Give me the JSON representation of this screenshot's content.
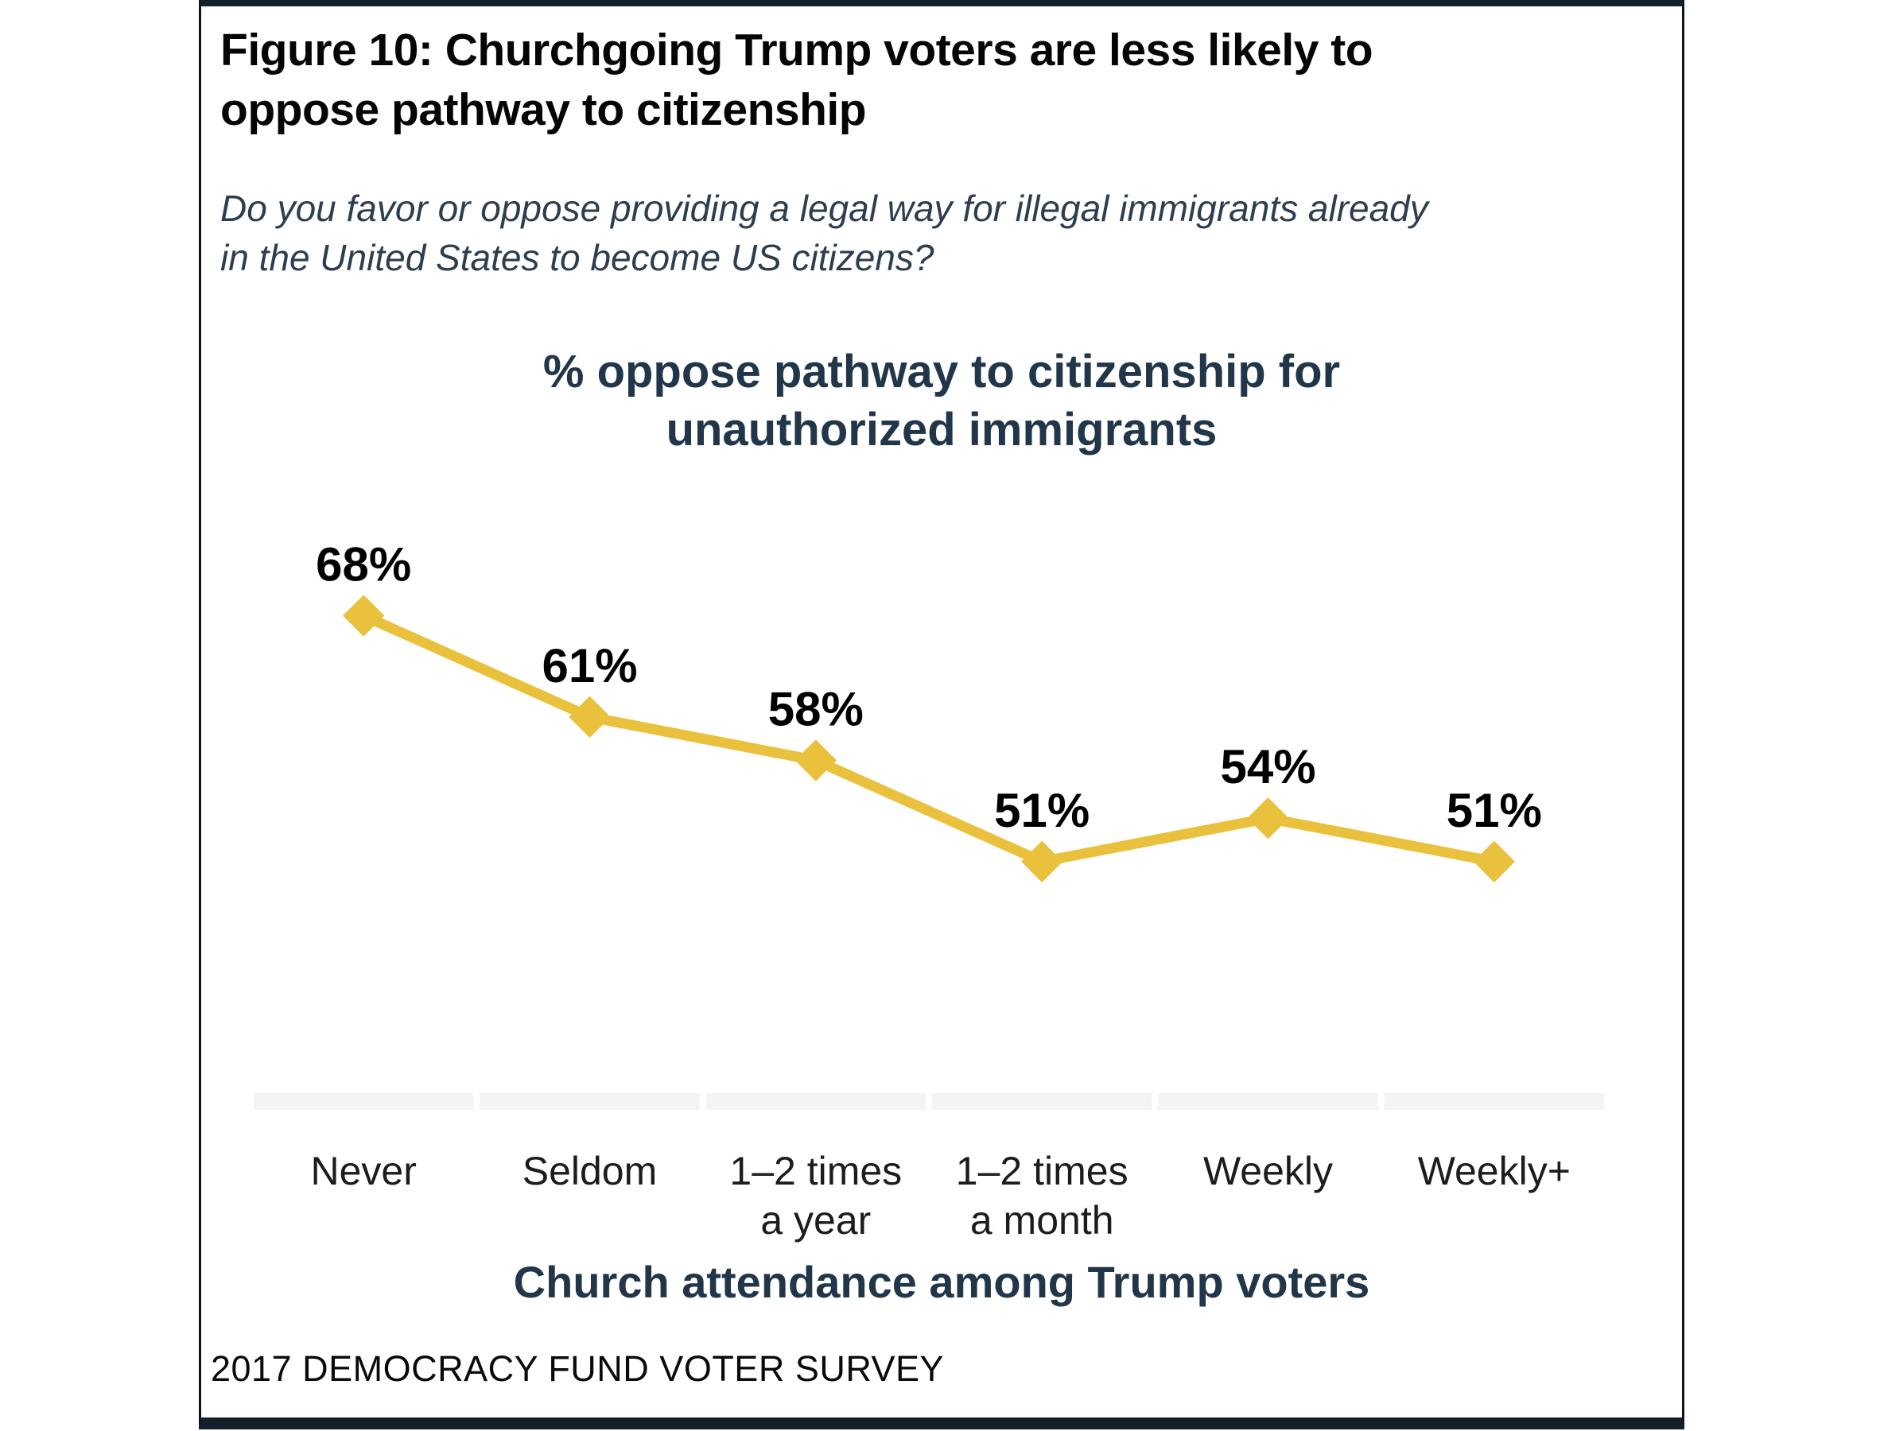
{
  "figure": {
    "title_lines": [
      "Figure 10: Churchgoing Trump voters are less likely to",
      "oppose pathway to citizenship"
    ],
    "subtitle_lines": [
      "Do you favor or oppose providing a legal way for illegal immigrants already",
      "in the United States to become US citizens?"
    ],
    "source": "2017 DEMOCRACY FUND VOTER SURVEY"
  },
  "chart_data": {
    "type": "line",
    "title_lines": [
      "% oppose pathway to citizenship for",
      "unauthorized immigrants"
    ],
    "xlabel": "Church attendance among Trump voters",
    "categories": [
      "Never",
      "Seldom",
      "1–2 times\na year",
      "1–2 times\na month",
      "Weekly",
      "Weekly+"
    ],
    "values": [
      68,
      61,
      58,
      51,
      54,
      51
    ],
    "point_labels": [
      "68%",
      "61%",
      "58%",
      "51%",
      "54%",
      "51%"
    ],
    "ylim": [
      35,
      76.5
    ],
    "grid": false,
    "legend": "none",
    "colors": {
      "line": "#EAC13C",
      "marker": "#EAC13C",
      "point_label": "#000000",
      "category_label": "#1c1c1c",
      "axis_strip": "#f4f4f4"
    }
  }
}
